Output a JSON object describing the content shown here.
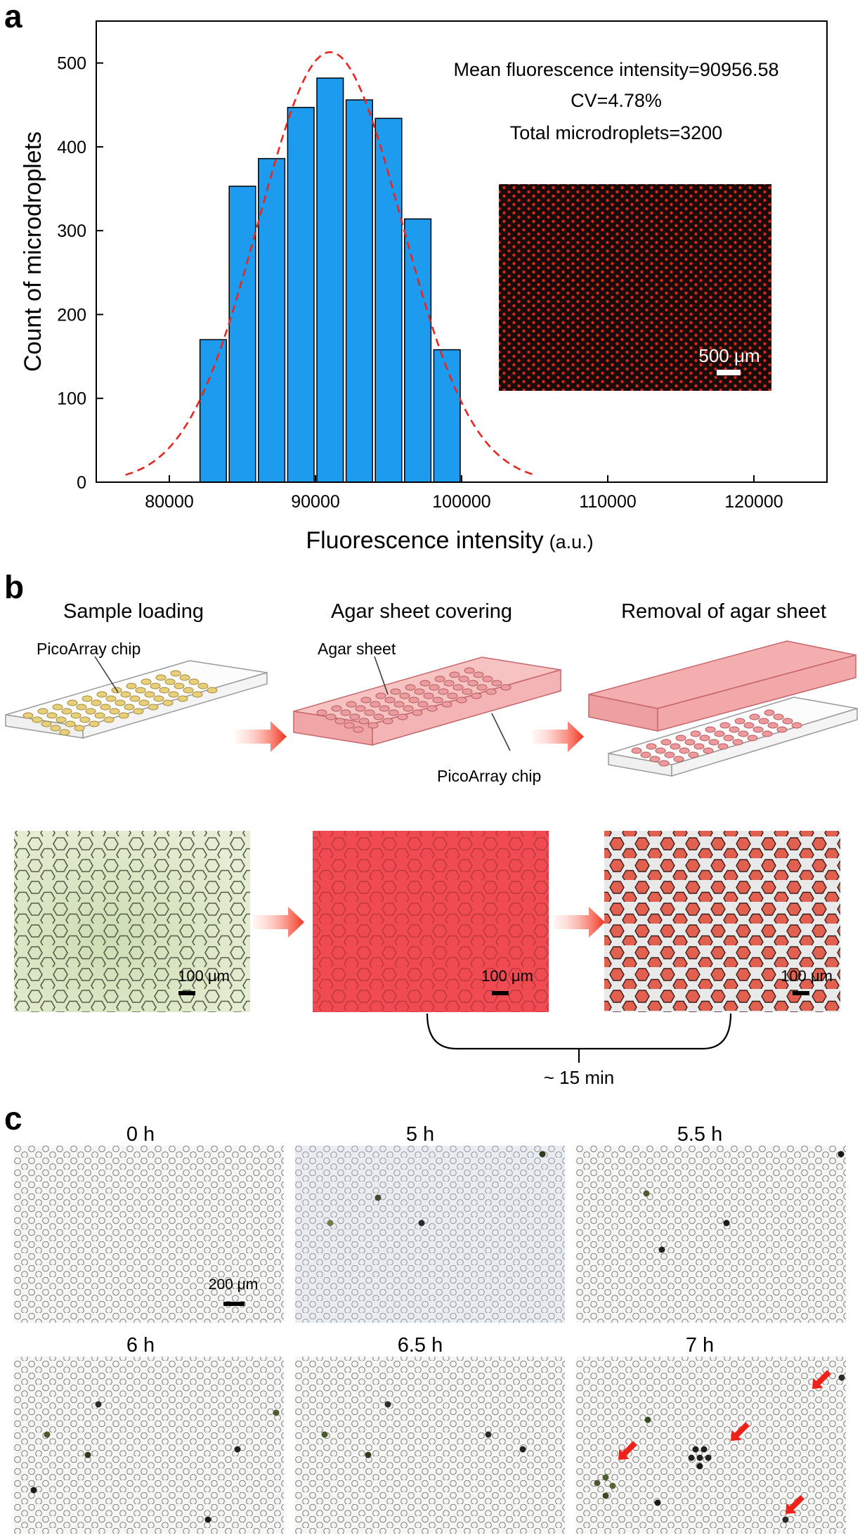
{
  "panel_a": {
    "label": "a",
    "stats": {
      "mean": "Mean fluorescence intensity=90956.58",
      "cv": "CV=4.78%",
      "total": "Total microdroplets=3200"
    },
    "inset_scale": "500 μm"
  },
  "chart_data": {
    "type": "bar",
    "title": "",
    "xlabel": "Fluorescence intensity",
    "xlabel_unit": "(a.u.)",
    "ylabel": "Count of microdroplets",
    "xlim": [
      75000,
      125000
    ],
    "ylim": [
      0,
      550
    ],
    "x_ticks": [
      80000,
      90000,
      100000,
      110000,
      120000
    ],
    "y_ticks": [
      0,
      100,
      200,
      300,
      400,
      500
    ],
    "bin_width": 2000,
    "bin_centers": [
      83000,
      85000,
      87000,
      89000,
      91000,
      93000,
      95000,
      97000,
      99000
    ],
    "values": [
      170,
      353,
      386,
      447,
      482,
      456,
      434,
      314,
      158
    ],
    "fit": {
      "type": "gaussian",
      "mean": 91000,
      "sd": 4900,
      "peak": 513,
      "color": "#e8261f"
    },
    "bar_color": "#1c9bef"
  },
  "panel_b": {
    "label": "b",
    "titles": [
      "Sample loading",
      "Agar sheet covering",
      "Removal of agar sheet"
    ],
    "callouts": {
      "chip1": "PicoArray chip",
      "agar": "Agar sheet",
      "chip2": "PicoArray chip"
    },
    "scales": [
      "100 μm",
      "100 μm",
      "100 μm"
    ],
    "time": "~ 15 min"
  },
  "panel_c": {
    "label": "c",
    "times": [
      "0 h",
      "5 h",
      "5.5 h",
      "6 h",
      "6.5 h",
      "7 h"
    ],
    "scale": "200 μm"
  }
}
